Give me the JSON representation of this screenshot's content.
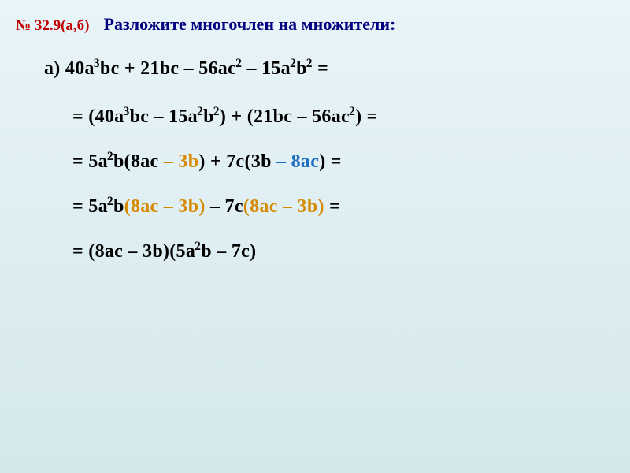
{
  "header": {
    "problem_number": "№ 32.9(а,б)",
    "title": "Разложите многочлен на множители:"
  },
  "lines": {
    "label_a": "а) 40",
    "a_sup1": "3",
    "a_txt1": "bc + 21bc – 56ac",
    "a_sup2": "2",
    "a_txt2": " – 15a",
    "a_sup3": "2",
    "a_txt3": "b",
    "a_sup4": "2",
    "a_txt4": " =",
    "b_txt1": "= (40a",
    "b_sup1": "3",
    "b_txt2": "bc – 15a",
    "b_sup2": "2",
    "b_txt3": "b",
    "b_sup3": "2",
    "b_txt4": ") + (21bc – 56ac",
    "b_sup4": "2",
    "b_txt5": ") =",
    "c_txt1": "= 5a",
    "c_sup1": "2",
    "c_txt2": "b(8ac",
    "c_txt3": " – 3b",
    "c_txt4": ") + 7c(3b",
    "c_txt5": " – 8ac",
    "c_txt6": ") =",
    "d_txt1": "= 5a",
    "d_sup1": "2",
    "d_txt2": "b",
    "d_txt3": "(8ac – 3b)",
    "d_txt4": " – 7c",
    "d_txt5": "(8ac – 3b)",
    "d_txt6": " =",
    "e_txt1": "= (8ac – 3b)(5a",
    "e_sup1": "2",
    "e_txt2": "b – 7c)"
  },
  "style": {
    "bg_gradient_top": "#e8f4f8",
    "bg_gradient_bottom": "#d4e8ec",
    "color_problem_number": "#c00000",
    "color_title": "#000080",
    "color_body_text": "#000000",
    "color_highlight_orange": "#d68a00",
    "color_highlight_blue": "#1f6fc4",
    "font_family": "Georgia, 'Times New Roman', serif",
    "font_size_header_num": 19,
    "font_size_header_title": 22,
    "font_size_body": 24
  }
}
